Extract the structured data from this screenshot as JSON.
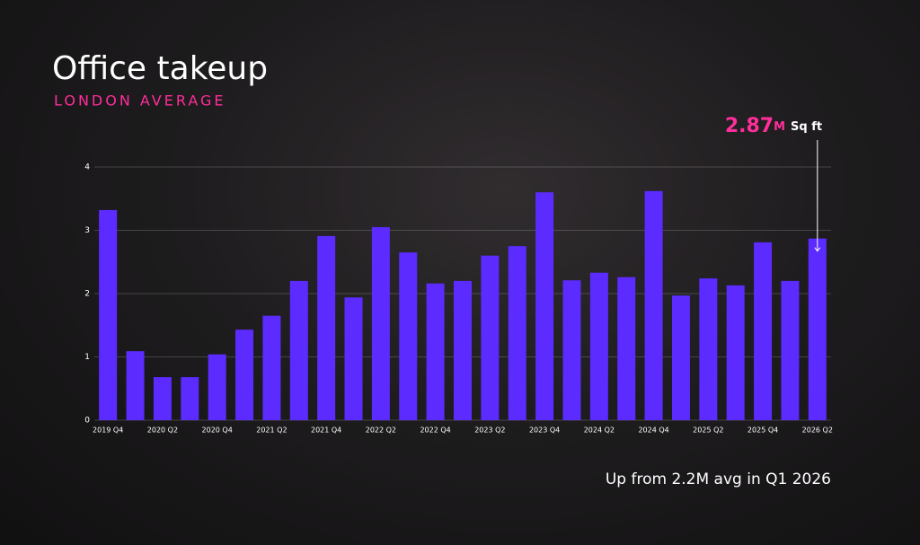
{
  "chart_data": {
    "type": "bar",
    "title": "Office takeup",
    "subtitle": "LONDON AVERAGE",
    "categories": [
      "2019 Q4",
      null,
      "2020 Q2",
      null,
      "2020 Q4",
      null,
      "2021 Q2",
      null,
      "2021 Q4",
      null,
      "2022 Q2",
      null,
      "2022 Q4",
      null,
      "2023 Q2",
      null,
      "2023 Q4",
      null,
      "2024 Q2",
      null,
      "2024 Q4",
      null,
      "2025 Q2",
      null,
      "2025 Q4",
      null,
      "2026 Q2"
    ],
    "values": [
      3.32,
      1.09,
      0.68,
      0.68,
      1.04,
      1.43,
      1.65,
      2.2,
      2.91,
      1.94,
      3.05,
      2.65,
      2.16,
      2.2,
      2.6,
      2.75,
      3.6,
      2.21,
      2.33,
      2.26,
      3.62,
      1.97,
      2.24,
      2.13,
      2.81,
      2.2,
      2.87
    ],
    "color": "#5b2bff",
    "ylim": [
      0,
      4
    ],
    "yticks": [
      0,
      1,
      2,
      3,
      4
    ],
    "grid": true,
    "annotation": {
      "value": 2.87,
      "unit": "M",
      "label": "Sq ft"
    },
    "footnote": "Up from 2.2M avg in Q1 2026"
  }
}
